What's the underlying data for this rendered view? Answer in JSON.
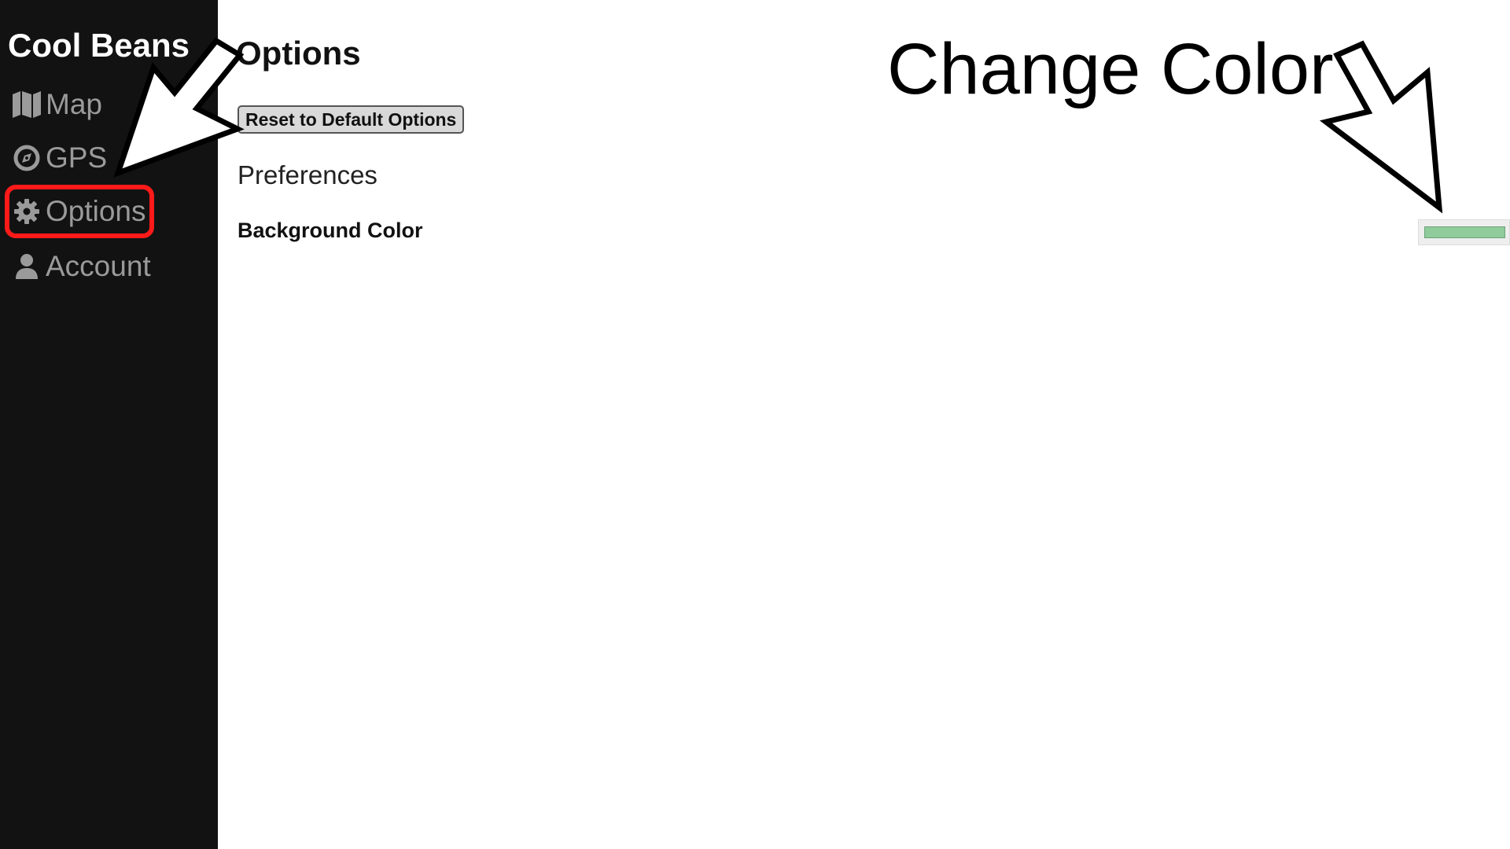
{
  "sidebar": {
    "brand": "Cool Beans",
    "items": [
      {
        "label": "Map",
        "icon": "map-icon"
      },
      {
        "label": "GPS",
        "icon": "compass-icon"
      },
      {
        "label": "Options",
        "icon": "gear-icon",
        "active": true
      },
      {
        "label": "Account",
        "icon": "user-icon"
      }
    ]
  },
  "main": {
    "title": "Options",
    "reset_button": "Reset to Default Options",
    "section_heading": "Preferences",
    "settings": [
      {
        "label": "Background Color",
        "value": "#8fcb9b"
      }
    ]
  },
  "annotation": {
    "text": "Change Color"
  },
  "colors": {
    "sidebar_bg": "#121212",
    "highlight": "#ff1a1a",
    "nav_text": "#9a9a9a"
  }
}
